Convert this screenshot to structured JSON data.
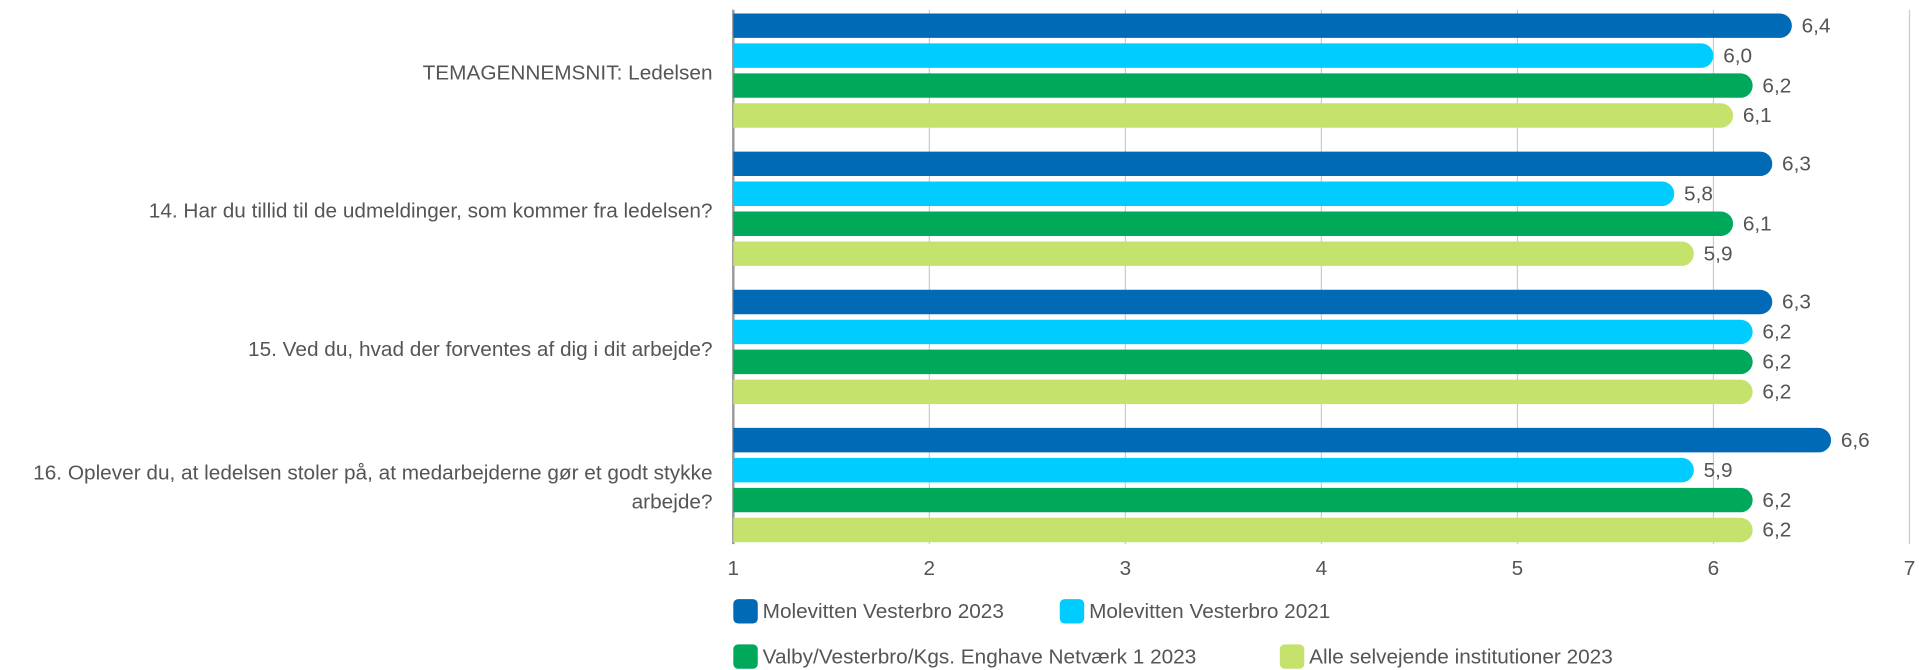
{
  "chart_data": {
    "type": "bar",
    "orientation": "horizontal",
    "categories": [
      "TEMAGENNEMSNIT: Ledelsen",
      "14. Har du tillid til de udmeldinger, som kommer fra ledelsen?",
      "15. Ved du, hvad der forventes af dig i dit arbejde?",
      "16. Oplever du, at ledelsen stoler på, at medarbejderne gør et godt stykke arbejde?"
    ],
    "series": [
      {
        "name": "Molevitten Vesterbro 2023",
        "color": "#006ab6",
        "values": [
          6.4,
          6.3,
          6.3,
          6.6
        ],
        "value_labels": [
          "6,4",
          "6,3",
          "6,3",
          "6,6"
        ]
      },
      {
        "name": "Molevitten Vesterbro 2021",
        "color": "#00ccff",
        "values": [
          6.0,
          5.8,
          6.2,
          5.9
        ],
        "value_labels": [
          "6,0",
          "5,8",
          "6,2",
          "5,9"
        ]
      },
      {
        "name": "Valby/Vesterbro/Kgs. Enghave Netværk 1 2023",
        "color": "#00a85a",
        "values": [
          6.2,
          6.1,
          6.2,
          6.2
        ],
        "value_labels": [
          "6,2",
          "6,1",
          "6,2",
          "6,2"
        ]
      },
      {
        "name": "Alle selvejende institutioner 2023",
        "color": "#c5e36c",
        "values": [
          6.1,
          5.9,
          6.2,
          6.2
        ],
        "value_labels": [
          "6,1",
          "5,9",
          "6,2",
          "6,2"
        ]
      }
    ],
    "xlim": [
      1,
      7
    ],
    "xticks": [
      1,
      2,
      3,
      4,
      5,
      6,
      7
    ],
    "grid": true,
    "legend": "bottom"
  }
}
